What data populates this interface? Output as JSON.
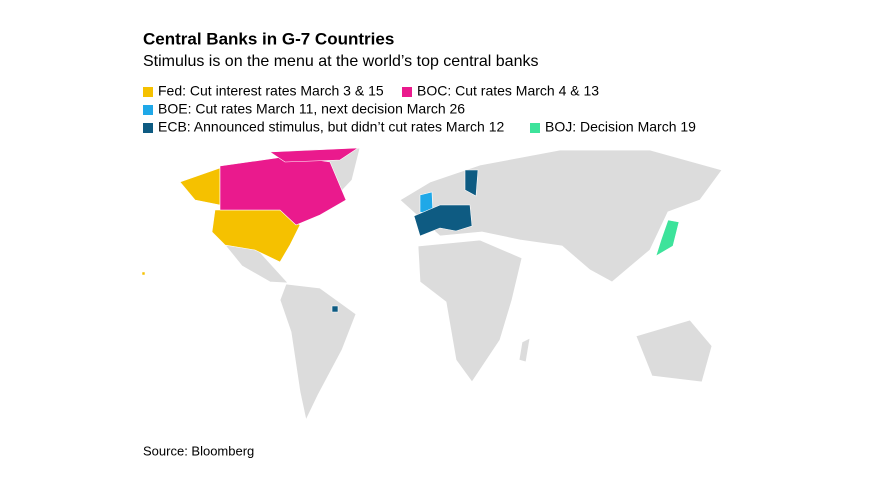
{
  "header": {
    "title": "Central Banks in G-7 Countries",
    "subtitle": "Stimulus is on the menu at the world’s top central banks"
  },
  "legend": {
    "items": [
      {
        "label": "Fed: Cut interest rates March 3 & 15",
        "color": "#f5c100"
      },
      {
        "label": "BOC: Cut rates March 4 & 13",
        "color": "#ea1a8d"
      },
      {
        "label": "BOE: Cut rates March 11, next decision March 26",
        "color": "#1fa8e8"
      },
      {
        "label": "ECB: Announced stimulus, but didn’t cut rates March 12",
        "color": "#0e5b82"
      },
      {
        "label": "BOJ: Decision March 19",
        "color": "#3de39b"
      }
    ]
  },
  "footer": {
    "source": "Source: Bloomberg"
  }
}
